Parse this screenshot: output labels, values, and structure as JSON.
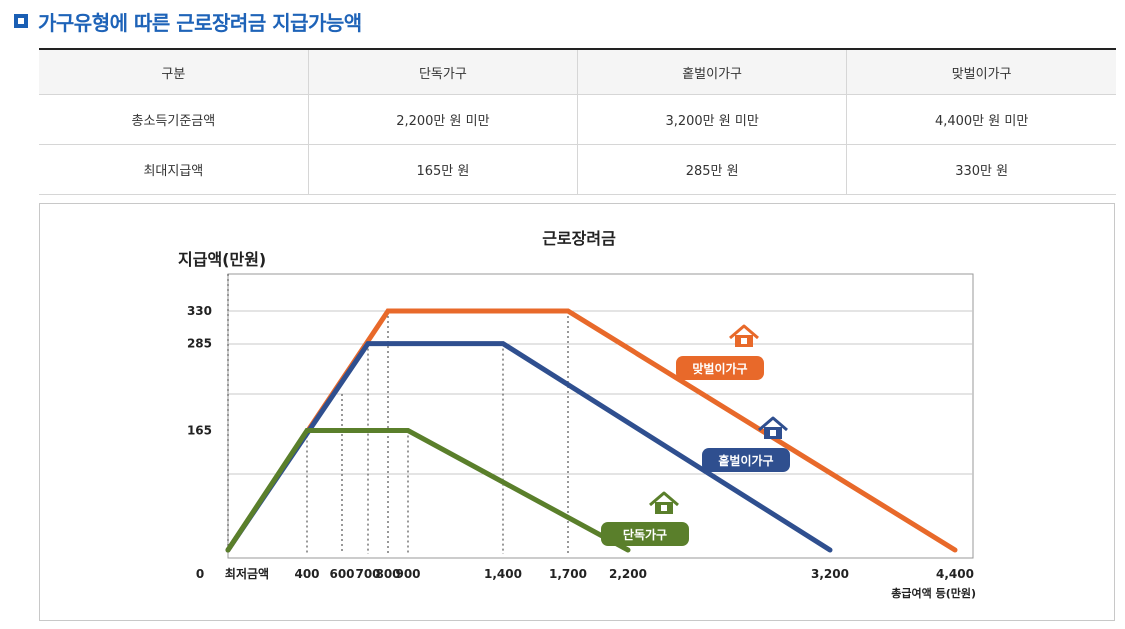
{
  "heading": "가구유형에 따른 근로장려금 지급가능액",
  "table": {
    "headers": [
      "구분",
      "단독가구",
      "홑벌이가구",
      "맞벌이가구"
    ],
    "rows": [
      [
        "총소득기준금액",
        "2,200만 원 미만",
        "3,200만 원 미만",
        "4,400만 원 미만"
      ],
      [
        "최대지급액",
        "165만 원",
        "285만 원",
        "330만 원"
      ]
    ]
  },
  "chart_data": {
    "type": "line",
    "title": "근로장려금",
    "ylabel": "지급액(만원)",
    "xlabel": "총급여액 등(만원)",
    "x_origin_labels": [
      "0",
      "최저금액"
    ],
    "xticks": [
      400,
      600,
      700,
      800,
      900,
      1400,
      1700,
      2200,
      3200,
      4400
    ],
    "xtick_labels": [
      "400",
      "600",
      "700",
      "800",
      "900",
      "1,400",
      "1,700",
      "2,200",
      "3,200",
      "4,400"
    ],
    "yticks": [
      165,
      285,
      330
    ],
    "ytick_labels": [
      "165",
      "285",
      "330"
    ],
    "grid": true,
    "series": [
      {
        "name": "맞벌이가구",
        "color": "#e8692a",
        "x": [
          0,
          800,
          1700,
          4400
        ],
        "y": [
          0,
          330,
          330,
          0
        ]
      },
      {
        "name": "홑벌이가구",
        "color": "#2f4f8f",
        "x": [
          0,
          700,
          1400,
          3200
        ],
        "y": [
          0,
          285,
          285,
          0
        ]
      },
      {
        "name": "단독가구",
        "color": "#5a7f2b",
        "x": [
          0,
          400,
          900,
          2200
        ],
        "y": [
          0,
          165,
          165,
          0
        ]
      }
    ]
  }
}
